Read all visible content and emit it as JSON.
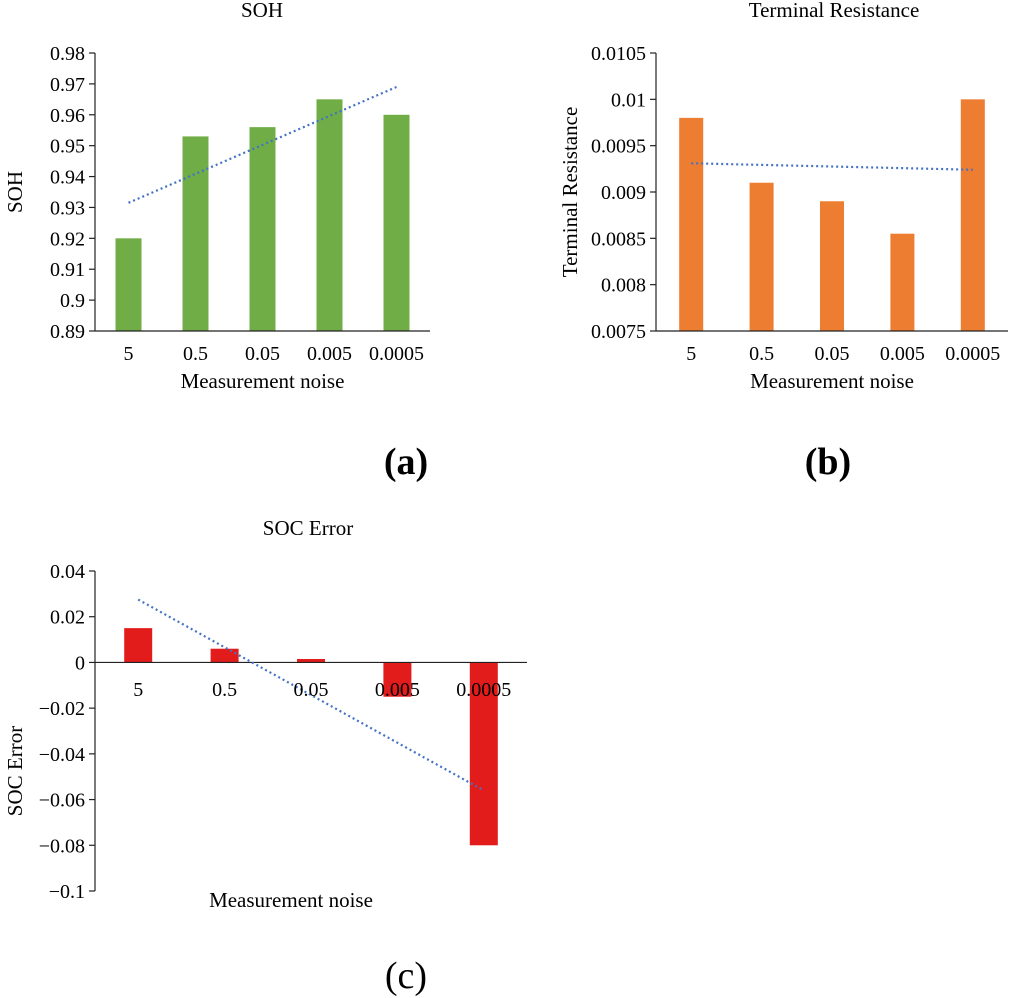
{
  "figure": {
    "panel_labels": [
      "(a)",
      "(b)",
      "(c)"
    ]
  },
  "chart_data": [
    {
      "type": "bar",
      "title": "SOH",
      "xlabel": "Measurement noise",
      "ylabel": "SOH",
      "categories": [
        "5",
        "0.5",
        "0.05",
        "0.005",
        "0.0005"
      ],
      "values": [
        0.92,
        0.953,
        0.956,
        0.965,
        0.96
      ],
      "ylim": [
        0.89,
        0.98
      ],
      "yticks": [
        "0.89",
        "0.9",
        "0.91",
        "0.92",
        "0.93",
        "0.94",
        "0.95",
        "0.96",
        "0.97",
        "0.98"
      ],
      "trendline": {
        "start": 0.9315,
        "end": 0.969,
        "style": "dotted"
      },
      "bar_color": "#70ad47",
      "trend_color": "#4472c4",
      "grid": false,
      "legend": false
    },
    {
      "type": "bar",
      "title": "Terminal Resistance",
      "xlabel": "Measurement noise",
      "ylabel": "Terminal Resistance",
      "categories": [
        "5",
        "0.5",
        "0.05",
        "0.005",
        "0.0005"
      ],
      "values": [
        0.0098,
        0.0091,
        0.0089,
        0.00855,
        0.01
      ],
      "ylim": [
        0.0075,
        0.0105
      ],
      "yticks": [
        "0.0075",
        "0.008",
        "0.0085",
        "0.009",
        "0.0095",
        "0.01",
        "0.0105"
      ],
      "trendline": {
        "start": 0.00931,
        "end": 0.00924,
        "style": "dotted"
      },
      "bar_color": "#ed7d31",
      "trend_color": "#4472c4",
      "grid": false,
      "legend": false
    },
    {
      "type": "bar",
      "title": "SOC Error",
      "xlabel": "Measurement noise",
      "ylabel": "SOC Error",
      "categories": [
        "5",
        "0.5",
        "0.05",
        "0.005",
        "0.0005"
      ],
      "values": [
        0.015,
        0.006,
        0.0015,
        -0.015,
        -0.08
      ],
      "ylim": [
        -0.1,
        0.04
      ],
      "yticks": [
        "−0.1",
        "−0.08",
        "−0.06",
        "−0.04",
        "−0.02",
        "0",
        "0.02",
        "0.04"
      ],
      "trendline": {
        "start": 0.0275,
        "end": -0.056,
        "style": "dotted"
      },
      "bar_color": "#e21b1b",
      "trend_color": "#4472c4",
      "grid": false,
      "legend": false
    }
  ]
}
